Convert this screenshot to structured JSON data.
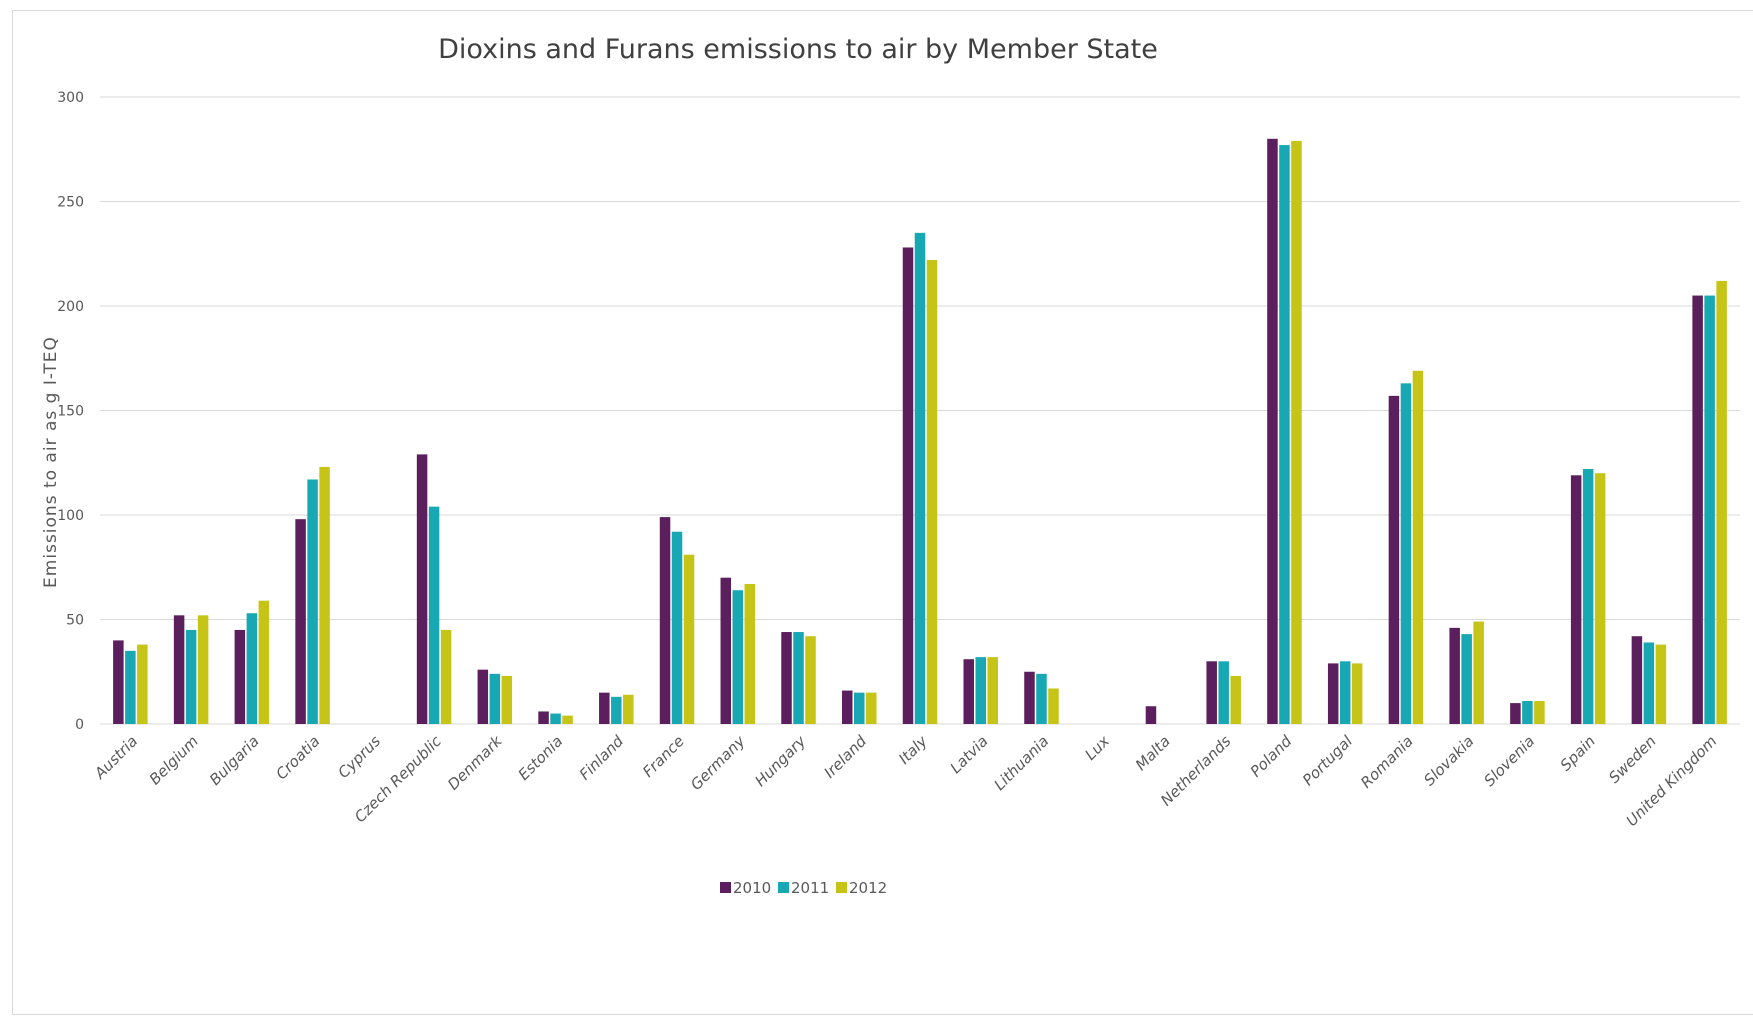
{
  "chart_data": {
    "type": "bar",
    "title": "Dioxins and Furans emissions to air by Member State",
    "xlabel": "",
    "ylabel": "Emissions to air as g I-TEQ",
    "ylim": [
      0,
      300
    ],
    "yticks": [
      0,
      50,
      100,
      150,
      200,
      250,
      300
    ],
    "grid": true,
    "legend_position": "bottom",
    "categories": [
      "Austria",
      "Belgium",
      "Bulgaria",
      "Croatia",
      "Cyprus",
      "Czech Republic",
      "Denmark",
      "Estonia",
      "Finland",
      "France",
      "Germany",
      "Hungary",
      "Ireland",
      "Italy",
      "Latvia",
      "Lithuania",
      "Lux",
      "Malta",
      "Netherlands",
      "Poland",
      "Portugal",
      "Romania",
      "Slovakia",
      "Slovenia",
      "Spain",
      "Sweden",
      "United Kingdom"
    ],
    "series": [
      {
        "name": "2010",
        "color": "#5b1f5e",
        "values": [
          40,
          52,
          45,
          98,
          0,
          129,
          26,
          6,
          15,
          99,
          70,
          44,
          16,
          228,
          31,
          25,
          0,
          8.5,
          30,
          280,
          29,
          157,
          46,
          10,
          119,
          42,
          205
        ]
      },
      {
        "name": "2011",
        "color": "#17a8b4",
        "values": [
          35,
          45,
          53,
          117,
          0,
          104,
          24,
          5,
          13,
          92,
          64,
          44,
          15,
          235,
          32,
          24,
          0,
          0,
          30,
          277,
          30,
          163,
          43,
          11,
          122,
          39,
          205
        ]
      },
      {
        "name": "2012",
        "color": "#c5c417",
        "values": [
          38,
          52,
          59,
          123,
          0,
          45,
          23,
          4,
          14,
          81,
          67,
          42,
          15,
          222,
          32,
          17,
          0,
          0,
          23,
          279,
          29,
          169,
          49,
          11,
          120,
          38,
          212
        ]
      }
    ]
  }
}
